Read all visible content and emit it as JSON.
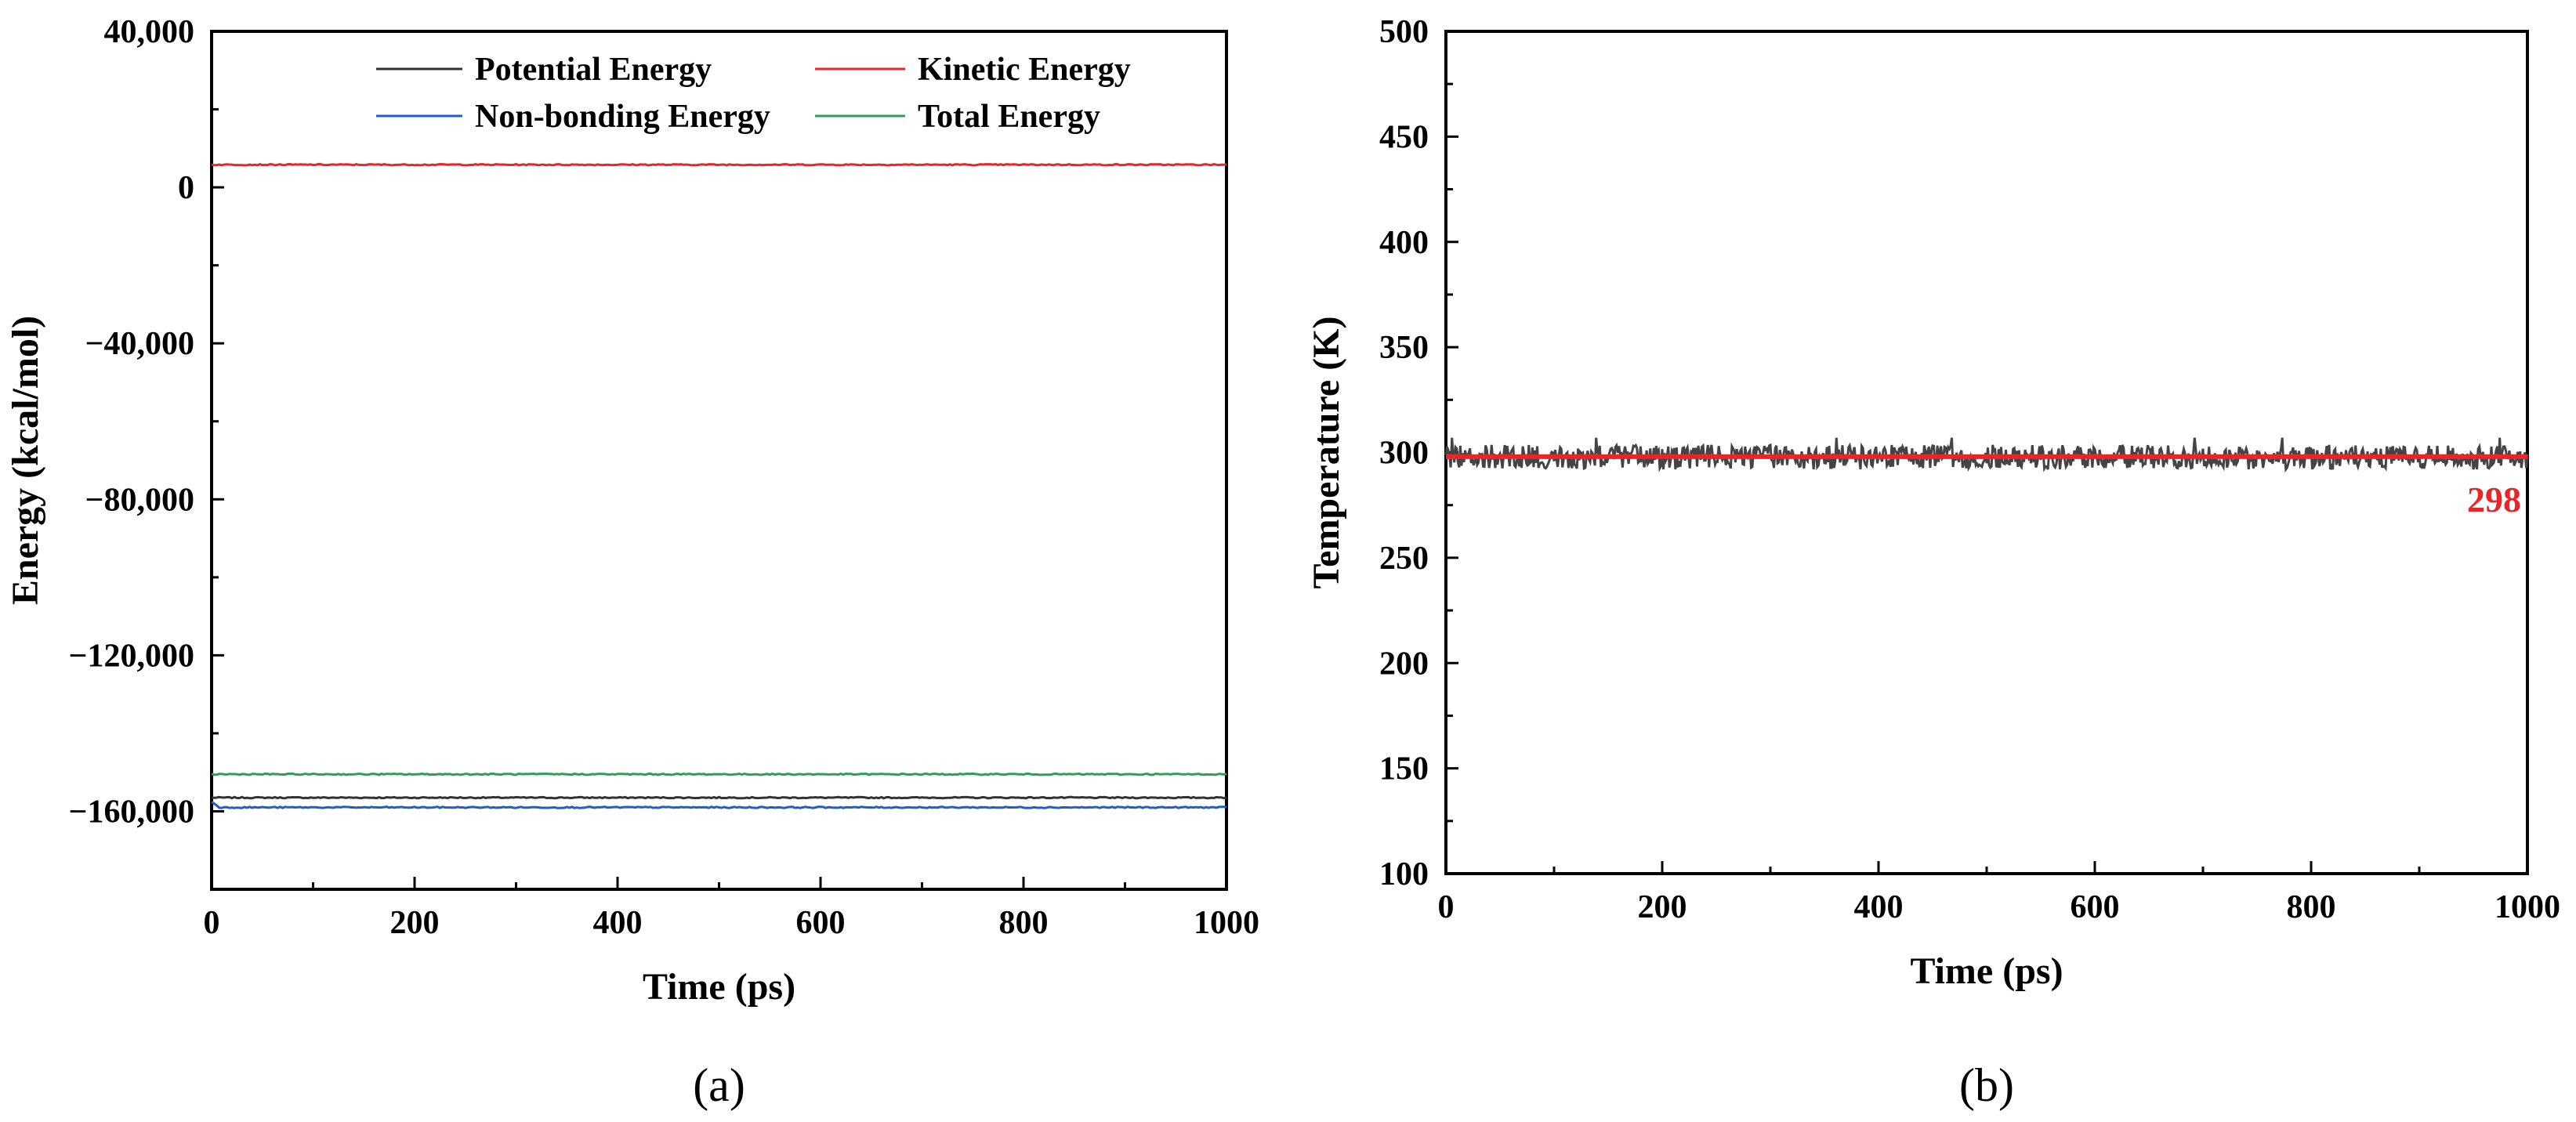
{
  "chart_data": [
    {
      "type": "line",
      "panel_label": "(a)",
      "xlabel": "Time (ps)",
      "ylabel": "Energy (kcal/mol)",
      "xlim": [
        0,
        1000
      ],
      "ylim": [
        -180000,
        40000
      ],
      "x_ticks": [
        0,
        200,
        400,
        600,
        800,
        1000
      ],
      "x_tick_labels": [
        "0",
        "200",
        "400",
        "600",
        "800",
        "1000"
      ],
      "y_ticks": [
        40000,
        0,
        -40000,
        -80000,
        -120000,
        -160000
      ],
      "y_tick_labels": [
        "40,000",
        "0",
        "−40,000",
        "−80,000",
        "−120,000",
        "−160,000"
      ],
      "grid": false,
      "legend_placement": "top",
      "series": [
        {
          "name": "Potential Energy",
          "color": "#333333",
          "x": [
            0,
            1000
          ],
          "y": [
            -156500,
            -156500
          ]
        },
        {
          "name": "Kinetic Energy",
          "color": "#e8262a",
          "x": [
            0,
            1000
          ],
          "y": [
            5800,
            5800
          ]
        },
        {
          "name": "Non-bonding Energy",
          "color": "#1f5fc8",
          "x": [
            0,
            1000
          ],
          "y": [
            -159000,
            -159000
          ]
        },
        {
          "name": "Total Energy",
          "color": "#2e9e5b",
          "x": [
            0,
            1000
          ],
          "y": [
            -150500,
            -150500
          ]
        }
      ]
    },
    {
      "type": "line",
      "panel_label": "(b)",
      "xlabel": "Time (ps)",
      "ylabel": "Temperature (K)",
      "xlim": [
        0,
        1000
      ],
      "ylim": [
        100,
        500
      ],
      "x_ticks": [
        0,
        200,
        400,
        600,
        800,
        1000
      ],
      "x_tick_labels": [
        "0",
        "200",
        "400",
        "600",
        "800",
        "1000"
      ],
      "y_ticks": [
        100,
        150,
        200,
        250,
        300,
        350,
        400,
        450,
        500
      ],
      "y_tick_labels": [
        "100",
        "150",
        "200",
        "250",
        "300",
        "350",
        "400",
        "450",
        "500"
      ],
      "grid": false,
      "series": [
        {
          "color": "#444444",
          "x": [
            0,
            1000
          ],
          "y_mean": 298,
          "y_range": [
            292,
            307
          ]
        },
        {
          "color": "#e8262a",
          "x": [
            0,
            1000
          ],
          "y": [
            298,
            298
          ]
        }
      ],
      "annotations": [
        {
          "text": "298",
          "color": "#e8262a",
          "x": 1000,
          "y": 298
        }
      ]
    }
  ]
}
